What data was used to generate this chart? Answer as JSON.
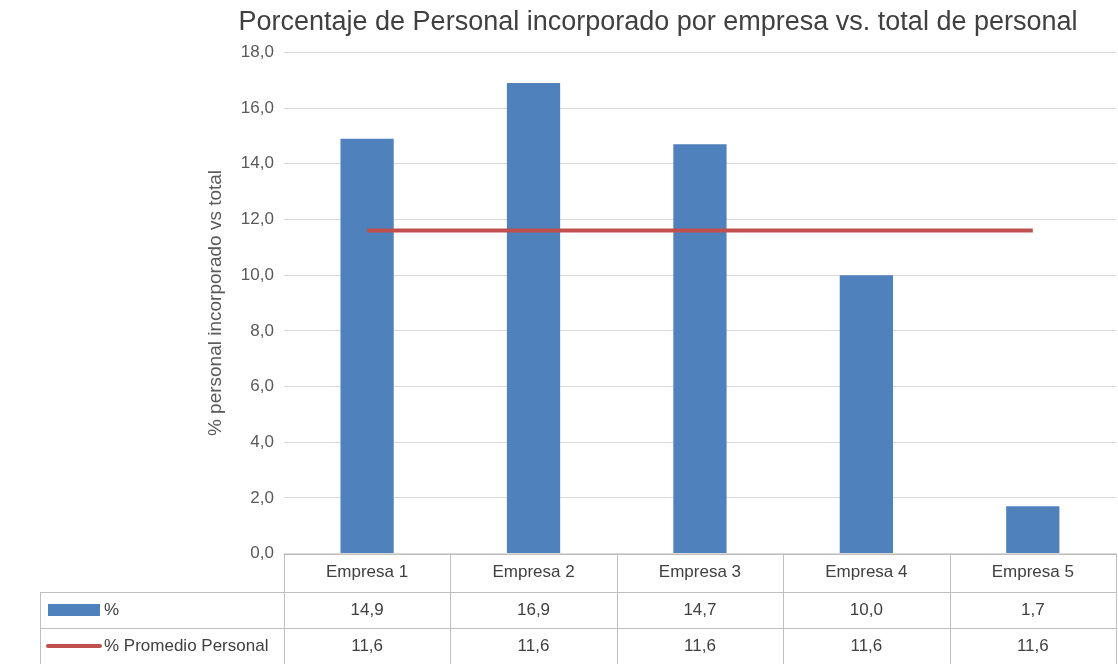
{
  "chart_data": {
    "type": "bar",
    "title": "Porcentaje de Personal incorporado por empresa vs. total de personal",
    "ylabel": "% personal incorporado vs total",
    "categories": [
      "Empresa 1",
      "Empresa 2",
      "Empresa 3",
      "Empresa 4",
      "Empresa 5"
    ],
    "series": [
      {
        "name": "%",
        "color": "#4f81bd",
        "values": [
          14.9,
          16.9,
          14.7,
          10.0,
          1.7
        ],
        "value_labels": [
          "14,9",
          "16,9",
          "14,7",
          "10,0",
          "1,7"
        ]
      },
      {
        "name": "% Promedio Personal",
        "type": "line",
        "color": "#c0504d",
        "values": [
          11.6,
          11.6,
          11.6,
          11.6,
          11.6
        ],
        "value_labels": [
          "11,6",
          "11,6",
          "11,6",
          "11,6",
          "11,6"
        ]
      }
    ],
    "ylim": [
      0,
      18
    ],
    "yticks": [
      {
        "value": 0,
        "label": "0,0"
      },
      {
        "value": 2,
        "label": "2,0"
      },
      {
        "value": 4,
        "label": "4,0"
      },
      {
        "value": 6,
        "label": "6,0"
      },
      {
        "value": 8,
        "label": "8,0"
      },
      {
        "value": 10,
        "label": "10,0"
      },
      {
        "value": 12,
        "label": "12,0"
      },
      {
        "value": 14,
        "label": "14,0"
      },
      {
        "value": 16,
        "label": "16,0"
      },
      {
        "value": 18,
        "label": "18,0"
      }
    ],
    "grid": "y",
    "legend": "bottom"
  }
}
